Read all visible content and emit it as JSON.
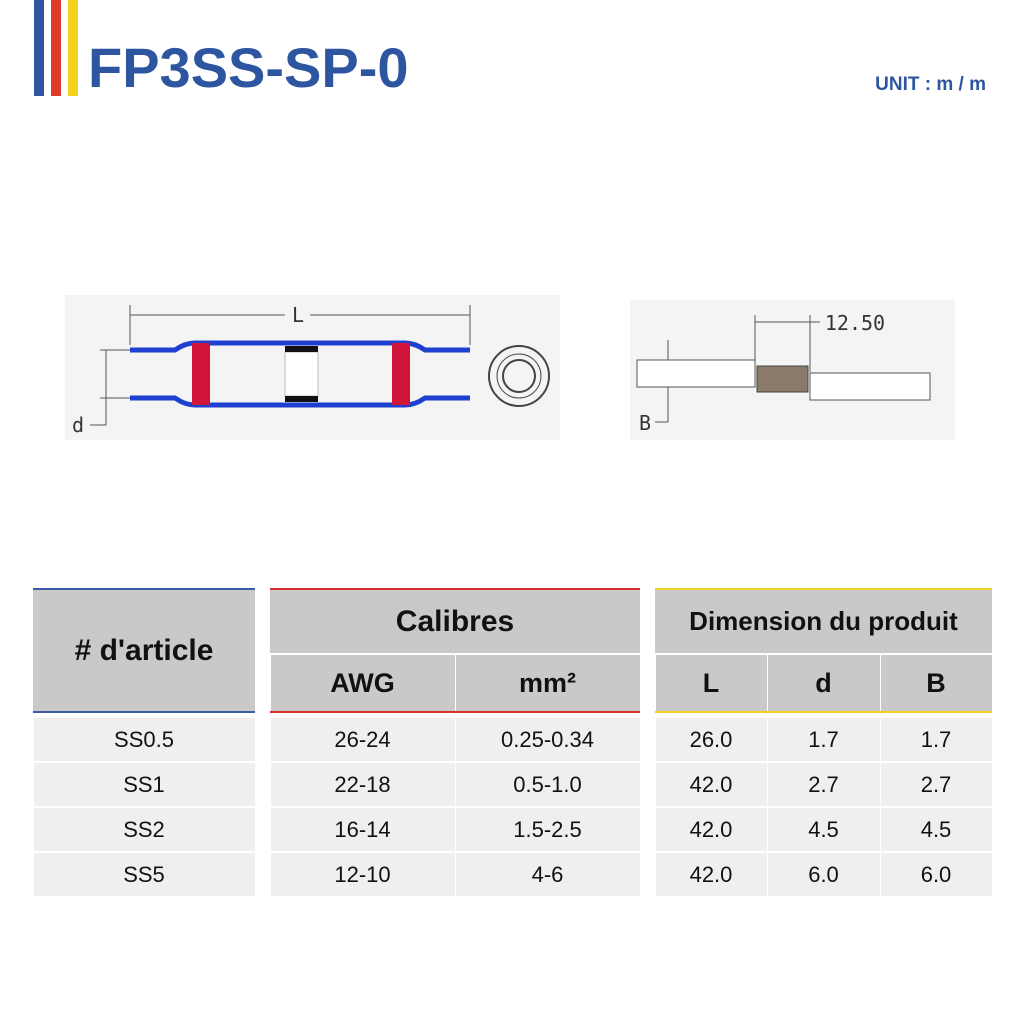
{
  "header": {
    "title": "FP3SS-SP-0",
    "unit": "UNIT : m / m"
  },
  "diagram": {
    "length_label": "L",
    "diameter_label": "d",
    "strip_length": "12.50",
    "strip_label": "B"
  },
  "table": {
    "groups": [
      "# d'article",
      "Calibres",
      "Dimension du produit"
    ],
    "subheaders": [
      "AWG",
      "mm²",
      "L",
      "d",
      "B"
    ],
    "rows": [
      [
        "SS0.5",
        "26-24",
        "0.25-0.34",
        "26.0",
        "1.7",
        "1.7"
      ],
      [
        "SS1",
        "22-18",
        "0.5-1.0",
        "42.0",
        "2.7",
        "2.7"
      ],
      [
        "SS2",
        "16-14",
        "1.5-2.5",
        "42.0",
        "4.5",
        "4.5"
      ],
      [
        "SS5",
        "12-10",
        "4-6",
        "42.0",
        "6.0",
        "6.0"
      ]
    ]
  }
}
